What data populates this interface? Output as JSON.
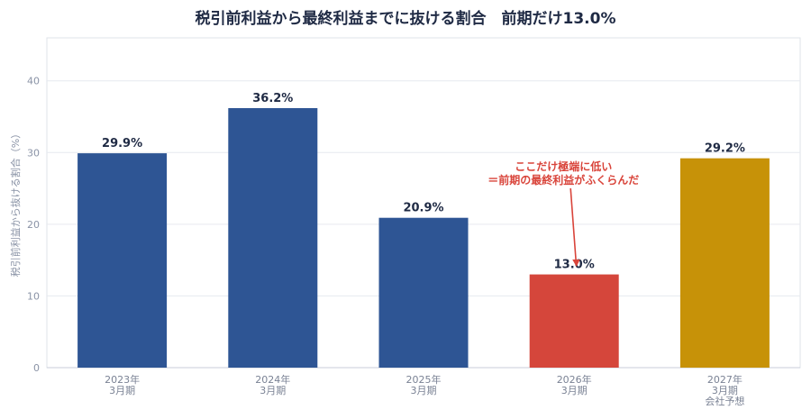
{
  "chart_data": {
    "type": "bar",
    "title": "税引前利益から最終利益までに抜ける割合　前期だけ13.0%",
    "ylabel": "税引前利益から抜ける割合（%）",
    "xlabel": "",
    "ylim": [
      0,
      46
    ],
    "yticks": [
      0,
      10,
      20,
      30,
      40
    ],
    "grid": true,
    "categories": [
      [
        "2023年",
        "3月期"
      ],
      [
        "2024年",
        "3月期"
      ],
      [
        "2025年",
        "3月期"
      ],
      [
        "2026年",
        "3月期"
      ],
      [
        "2027年",
        "3月期",
        "会社予想"
      ]
    ],
    "values": [
      29.9,
      36.2,
      20.9,
      13.0,
      29.2
    ],
    "data_labels": [
      "29.9%",
      "36.2%",
      "20.9%",
      "13.0%",
      "29.2%"
    ],
    "colors": [
      "#2e5594",
      "#2e5594",
      "#2e5594",
      "#d5463b",
      "#c79208"
    ],
    "annotation": {
      "lines": [
        "ここだけ極端に低い",
        "＝前期の最終利益がふくらんだ"
      ],
      "target_index": 3,
      "color": "#d9443a"
    }
  }
}
